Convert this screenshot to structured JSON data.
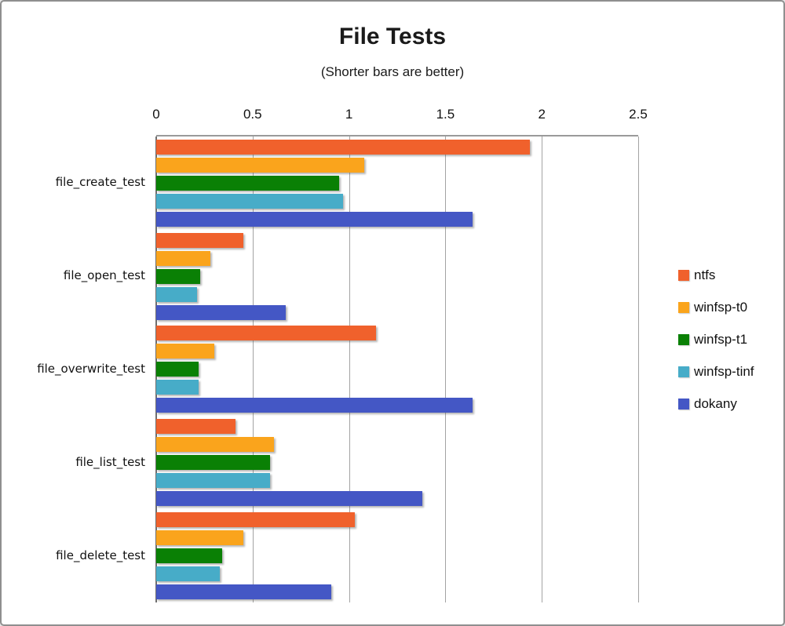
{
  "window": {
    "background": "#ffffff",
    "border_color": "#8f8f8f"
  },
  "chart_data": {
    "type": "bar",
    "orientation": "horizontal",
    "title": "File Tests",
    "subtitle": "(Shorter bars are better)",
    "categories": [
      "file_create_test",
      "file_open_test",
      "file_overwrite_test",
      "file_list_test",
      "file_delete_test"
    ],
    "series": [
      {
        "name": "ntfs",
        "color": "#F0612C",
        "values": [
          1.94,
          0.45,
          1.14,
          0.41,
          1.03
        ]
      },
      {
        "name": "winfsp-t0",
        "color": "#FAA41C",
        "values": [
          1.08,
          0.28,
          0.3,
          0.61,
          0.45
        ]
      },
      {
        "name": "winfsp-t1",
        "color": "#0A8005",
        "values": [
          0.95,
          0.23,
          0.22,
          0.59,
          0.34
        ]
      },
      {
        "name": "winfsp-tinf",
        "color": "#47ACC8",
        "values": [
          0.97,
          0.21,
          0.22,
          0.59,
          0.33
        ]
      },
      {
        "name": "dokany",
        "color": "#4457C5",
        "values": [
          1.64,
          0.67,
          1.64,
          1.38,
          0.91
        ]
      }
    ],
    "xlim": [
      0,
      2.5
    ],
    "x_ticks": [
      {
        "value": 0,
        "label": "0"
      },
      {
        "value": 0.5,
        "label": "0.5"
      },
      {
        "value": 1,
        "label": "1"
      },
      {
        "value": 1.5,
        "label": "1.5"
      },
      {
        "value": 2,
        "label": "2"
      },
      {
        "value": 2.5,
        "label": "2.5"
      }
    ],
    "grid": true,
    "legend_position": "right",
    "gridline_color": "#a3a3a3",
    "axis_line_color": "#6f6f6f"
  }
}
